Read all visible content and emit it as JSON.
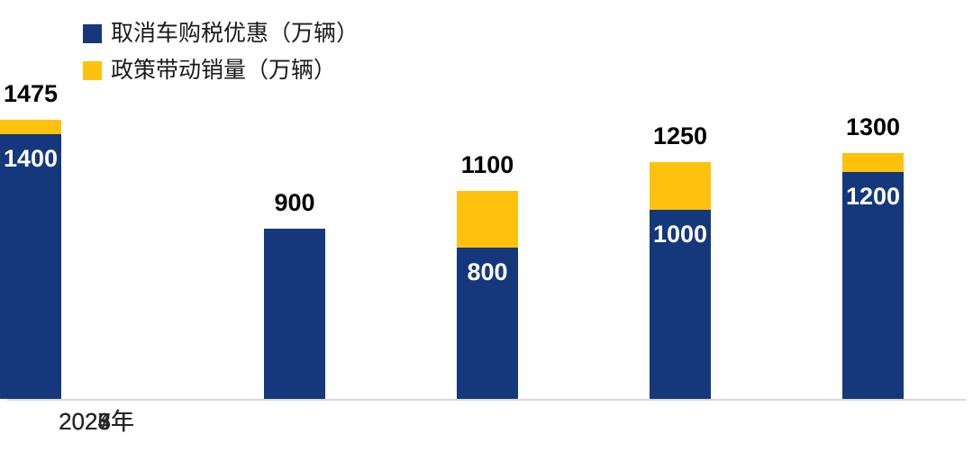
{
  "chart_data": {
    "type": "bar",
    "stacked": true,
    "title": "",
    "unit": "万辆",
    "categories": [
      "2023年",
      "2024年",
      "2025年",
      "2026年",
      "2027年"
    ],
    "series": [
      {
        "name": "取消车购税优惠（万辆）",
        "color": "#14387B",
        "values": [
          900,
          800,
          1000,
          1200,
          1400
        ]
      },
      {
        "name": "政策带动销量（万辆）",
        "color": "#FEC20E",
        "values": [
          0,
          300,
          250,
          100,
          75
        ]
      }
    ],
    "totals": [
      "900",
      "1100",
      "1250",
      "1300",
      "1475"
    ],
    "inner_labels": [
      "",
      "800",
      "1000",
      "1200",
      "1400"
    ],
    "legend_position": "top-left",
    "grid": false,
    "axis_line_color": "#D9D9D9",
    "background": "#FFFFFF",
    "ylim": [
      0,
      1600
    ]
  }
}
